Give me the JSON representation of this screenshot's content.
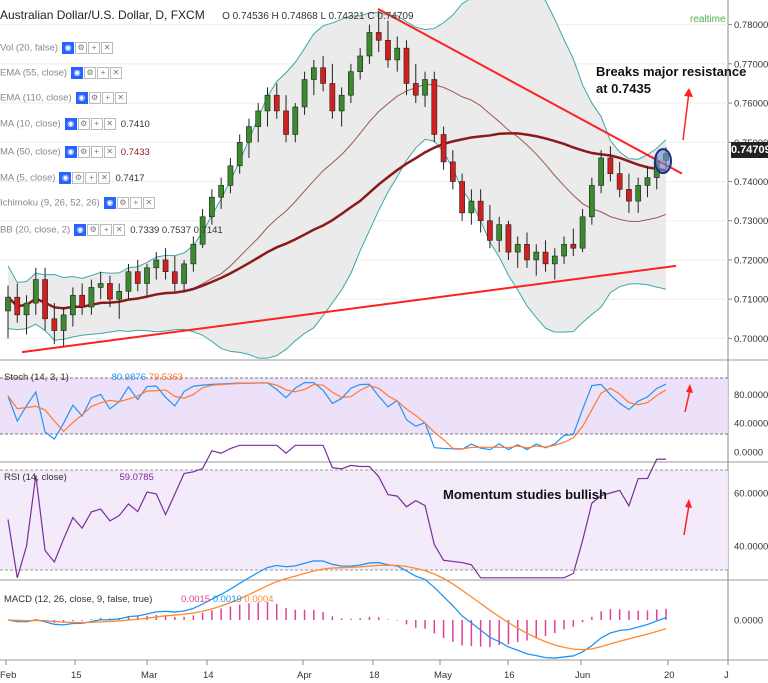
{
  "header": {
    "title": "Australian Dollar/U.S. Dollar, D, FXCM",
    "ohlc": "O 0.74536 H 0.74868 L 0.74321 C 0.74709",
    "realtime": "realtime",
    "last_price": "0.74709"
  },
  "indicators": [
    {
      "label": "Vol (20, false)",
      "values": ""
    },
    {
      "label": "EMA (55, close)",
      "values": ""
    },
    {
      "label": "EMA (110, close)",
      "values": ""
    },
    {
      "label": "MA (10, close)",
      "values": "0.7410"
    },
    {
      "label": "MA (50, close)",
      "values": "0.7433"
    },
    {
      "label": "MA (5, close)",
      "values": "0.7417"
    },
    {
      "label": "Ichimoku (9, 26, 52, 26)",
      "values": ""
    },
    {
      "label": "BB (20, close, 2)",
      "values": "0.7339 0.7537 0.7141"
    }
  ],
  "annotations": {
    "breakout": "Breaks major resistance\nat 0.7435",
    "momentum": "Momentum studies bullish"
  },
  "panes": {
    "stoch": {
      "label": "Stoch (14, 3, 1)",
      "values": [
        "80.9876",
        "79.5363"
      ],
      "ticks": [
        "80.0000",
        "40.0000",
        "0.0000"
      ]
    },
    "rsi": {
      "label": "RSI (14, close)",
      "values": [
        "59.0785"
      ],
      "ticks": [
        "60.0000",
        "40.0000"
      ]
    },
    "macd": {
      "label": "MACD (12, 26, close, 9, false, true)",
      "values": [
        "0.0015",
        "0.0019",
        "0.0004"
      ],
      "ticks": [
        "0.0000"
      ]
    }
  },
  "colors": {
    "bull": "#3a8a2e",
    "bear": "#d02020",
    "trend": "#ff2020",
    "ma50": "#8b1a1a",
    "ma20": "#9c5a50",
    "band": "#e8e8e8",
    "bb_line": "#3fa7a7",
    "pane_fill": "#e8d8f8",
    "stoch_k": "#2196f3",
    "stoch_d": "#ff7a30",
    "rsi": "#7b2d9b",
    "macd": "#2196f3",
    "signal": "#ff8a30",
    "hist": "#e0409a"
  },
  "chart_data": {
    "type": "line",
    "title": "Australian Dollar/U.S. Dollar, D, FXCM",
    "x_ticks": [
      "Feb",
      "15",
      "Mar",
      "14",
      "Apr",
      "18",
      "May",
      "16",
      "Jun",
      "20",
      "J"
    ],
    "y_ticks": [
      "0.78000",
      "0.77000",
      "0.76000",
      "0.75000",
      "0.74000",
      "0.73000",
      "0.72000",
      "0.71000",
      "0.70000"
    ],
    "ylim": [
      0.695,
      0.785
    ],
    "candles": [
      {
        "o": 0.707,
        "h": 0.7135,
        "l": 0.7,
        "c": 0.7105
      },
      {
        "o": 0.7105,
        "h": 0.714,
        "l": 0.704,
        "c": 0.706
      },
      {
        "o": 0.706,
        "h": 0.711,
        "l": 0.701,
        "c": 0.709
      },
      {
        "o": 0.709,
        "h": 0.718,
        "l": 0.706,
        "c": 0.715
      },
      {
        "o": 0.715,
        "h": 0.718,
        "l": 0.702,
        "c": 0.705
      },
      {
        "o": 0.705,
        "h": 0.709,
        "l": 0.6985,
        "c": 0.702
      },
      {
        "o": 0.702,
        "h": 0.708,
        "l": 0.698,
        "c": 0.706
      },
      {
        "o": 0.706,
        "h": 0.713,
        "l": 0.703,
        "c": 0.711
      },
      {
        "o": 0.711,
        "h": 0.714,
        "l": 0.706,
        "c": 0.708
      },
      {
        "o": 0.708,
        "h": 0.715,
        "l": 0.706,
        "c": 0.713
      },
      {
        "o": 0.713,
        "h": 0.717,
        "l": 0.71,
        "c": 0.714
      },
      {
        "o": 0.714,
        "h": 0.716,
        "l": 0.708,
        "c": 0.71
      },
      {
        "o": 0.71,
        "h": 0.714,
        "l": 0.705,
        "c": 0.712
      },
      {
        "o": 0.712,
        "h": 0.719,
        "l": 0.71,
        "c": 0.717
      },
      {
        "o": 0.717,
        "h": 0.72,
        "l": 0.712,
        "c": 0.714
      },
      {
        "o": 0.714,
        "h": 0.719,
        "l": 0.711,
        "c": 0.718
      },
      {
        "o": 0.718,
        "h": 0.722,
        "l": 0.715,
        "c": 0.72
      },
      {
        "o": 0.72,
        "h": 0.723,
        "l": 0.715,
        "c": 0.717
      },
      {
        "o": 0.717,
        "h": 0.721,
        "l": 0.712,
        "c": 0.714
      },
      {
        "o": 0.714,
        "h": 0.72,
        "l": 0.712,
        "c": 0.719
      },
      {
        "o": 0.719,
        "h": 0.726,
        "l": 0.717,
        "c": 0.724
      },
      {
        "o": 0.724,
        "h": 0.733,
        "l": 0.723,
        "c": 0.731
      },
      {
        "o": 0.731,
        "h": 0.738,
        "l": 0.729,
        "c": 0.736
      },
      {
        "o": 0.736,
        "h": 0.741,
        "l": 0.733,
        "c": 0.739
      },
      {
        "o": 0.739,
        "h": 0.746,
        "l": 0.737,
        "c": 0.744
      },
      {
        "o": 0.744,
        "h": 0.752,
        "l": 0.742,
        "c": 0.75
      },
      {
        "o": 0.75,
        "h": 0.756,
        "l": 0.746,
        "c": 0.754
      },
      {
        "o": 0.754,
        "h": 0.76,
        "l": 0.75,
        "c": 0.758
      },
      {
        "o": 0.758,
        "h": 0.764,
        "l": 0.754,
        "c": 0.762
      },
      {
        "o": 0.762,
        "h": 0.765,
        "l": 0.756,
        "c": 0.758
      },
      {
        "o": 0.758,
        "h": 0.762,
        "l": 0.75,
        "c": 0.752
      },
      {
        "o": 0.752,
        "h": 0.76,
        "l": 0.75,
        "c": 0.759
      },
      {
        "o": 0.759,
        "h": 0.768,
        "l": 0.757,
        "c": 0.766
      },
      {
        "o": 0.766,
        "h": 0.771,
        "l": 0.762,
        "c": 0.769
      },
      {
        "o": 0.769,
        "h": 0.772,
        "l": 0.763,
        "c": 0.765
      },
      {
        "o": 0.765,
        "h": 0.77,
        "l": 0.756,
        "c": 0.758
      },
      {
        "o": 0.758,
        "h": 0.764,
        "l": 0.754,
        "c": 0.762
      },
      {
        "o": 0.762,
        "h": 0.77,
        "l": 0.76,
        "c": 0.768
      },
      {
        "o": 0.768,
        "h": 0.774,
        "l": 0.766,
        "c": 0.772
      },
      {
        "o": 0.772,
        "h": 0.78,
        "l": 0.77,
        "c": 0.778
      },
      {
        "o": 0.778,
        "h": 0.7835,
        "l": 0.773,
        "c": 0.776
      },
      {
        "o": 0.776,
        "h": 0.781,
        "l": 0.769,
        "c": 0.771
      },
      {
        "o": 0.771,
        "h": 0.777,
        "l": 0.768,
        "c": 0.774
      },
      {
        "o": 0.774,
        "h": 0.776,
        "l": 0.762,
        "c": 0.765
      },
      {
        "o": 0.765,
        "h": 0.77,
        "l": 0.76,
        "c": 0.762
      },
      {
        "o": 0.762,
        "h": 0.768,
        "l": 0.759,
        "c": 0.766
      },
      {
        "o": 0.766,
        "h": 0.768,
        "l": 0.75,
        "c": 0.752
      },
      {
        "o": 0.752,
        "h": 0.754,
        "l": 0.743,
        "c": 0.745
      },
      {
        "o": 0.745,
        "h": 0.748,
        "l": 0.738,
        "c": 0.74
      },
      {
        "o": 0.74,
        "h": 0.742,
        "l": 0.73,
        "c": 0.732
      },
      {
        "o": 0.732,
        "h": 0.738,
        "l": 0.729,
        "c": 0.735
      },
      {
        "o": 0.735,
        "h": 0.738,
        "l": 0.727,
        "c": 0.73
      },
      {
        "o": 0.73,
        "h": 0.734,
        "l": 0.723,
        "c": 0.725
      },
      {
        "o": 0.725,
        "h": 0.731,
        "l": 0.722,
        "c": 0.729
      },
      {
        "o": 0.729,
        "h": 0.73,
        "l": 0.72,
        "c": 0.722
      },
      {
        "o": 0.722,
        "h": 0.726,
        "l": 0.718,
        "c": 0.724
      },
      {
        "o": 0.724,
        "h": 0.727,
        "l": 0.718,
        "c": 0.72
      },
      {
        "o": 0.72,
        "h": 0.724,
        "l": 0.716,
        "c": 0.722
      },
      {
        "o": 0.722,
        "h": 0.725,
        "l": 0.717,
        "c": 0.719
      },
      {
        "o": 0.719,
        "h": 0.723,
        "l": 0.715,
        "c": 0.721
      },
      {
        "o": 0.721,
        "h": 0.726,
        "l": 0.719,
        "c": 0.724
      },
      {
        "o": 0.724,
        "h": 0.728,
        "l": 0.721,
        "c": 0.723
      },
      {
        "o": 0.723,
        "h": 0.733,
        "l": 0.722,
        "c": 0.731
      },
      {
        "o": 0.731,
        "h": 0.741,
        "l": 0.729,
        "c": 0.739
      },
      {
        "o": 0.739,
        "h": 0.748,
        "l": 0.737,
        "c": 0.746
      },
      {
        "o": 0.746,
        "h": 0.749,
        "l": 0.74,
        "c": 0.742
      },
      {
        "o": 0.742,
        "h": 0.745,
        "l": 0.736,
        "c": 0.738
      },
      {
        "o": 0.738,
        "h": 0.742,
        "l": 0.732,
        "c": 0.735
      },
      {
        "o": 0.735,
        "h": 0.741,
        "l": 0.732,
        "c": 0.739
      },
      {
        "o": 0.739,
        "h": 0.744,
        "l": 0.736,
        "c": 0.741
      },
      {
        "o": 0.741,
        "h": 0.747,
        "l": 0.738,
        "c": 0.745
      },
      {
        "o": 0.7454,
        "h": 0.7487,
        "l": 0.7432,
        "c": 0.7471
      }
    ]
  }
}
